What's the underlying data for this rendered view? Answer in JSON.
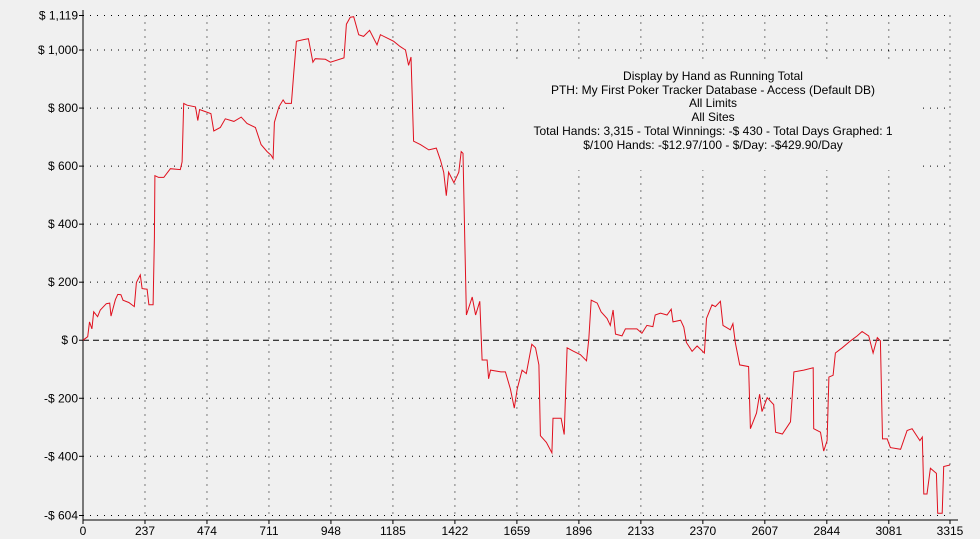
{
  "info": {
    "lines": [
      "Display by Hand as Running Total",
      "PTH: My First Poker Tracker Database - Access (Default DB)",
      "All Limits",
      "All Sites",
      "Total Hands: 3,315 - Total Winnings: -$ 430 - Total Days Graphed: 1",
      "$/100 Hands: -$12.97/100 - $/Day: -$429.90/Day"
    ]
  },
  "chart_data": {
    "type": "line",
    "title": "",
    "xlabel": "",
    "ylabel": "",
    "xlim": [
      0,
      3315
    ],
    "ylim": [
      -604,
      1119
    ],
    "grid": true,
    "line_color": "#e0101e",
    "x_ticks": [
      0,
      237,
      474,
      711,
      948,
      1185,
      1422,
      1659,
      1896,
      2133,
      2370,
      2607,
      2844,
      3081,
      3315
    ],
    "x_tick_labels": [
      "0",
      "237",
      "474",
      "711",
      "948",
      "1185",
      "1422",
      "1659",
      "1896",
      "2133",
      "2370",
      "2607",
      "2844",
      "3081",
      "3315"
    ],
    "y_ticks": [
      1119,
      1000,
      800,
      600,
      400,
      200,
      0,
      -200,
      -400,
      -604
    ],
    "y_tick_labels": [
      "$ 1,119",
      "$ 1,000",
      "$ 800",
      "$ 600",
      "$ 400",
      "$ 200",
      "$ 0",
      "-$ 200",
      "-$ 400",
      "-$ 604"
    ],
    "series": [
      {
        "x": [
          0,
          18,
          25,
          34,
          41,
          56,
          66,
          89,
          102,
          107,
          124,
          133,
          145,
          153,
          175,
          196,
          204,
          219,
          226,
          245,
          252,
          268,
          273,
          275,
          289,
          309,
          334,
          372,
          379,
          385,
          398,
          430,
          439,
          446,
          461,
          489,
          500,
          525,
          544,
          577,
          605,
          627,
          659,
          681,
          704,
          719,
          727,
          732,
          749,
          765,
          774,
          797,
          806,
          816,
          843,
          862,
          879,
          888,
          927,
          946,
          998,
          1007,
          1022,
          1035,
          1054,
          1073,
          1096,
          1124,
          1137,
          1163,
          1188,
          1213,
          1233,
          1245,
          1254,
          1264,
          1290,
          1322,
          1351,
          1367,
          1379,
          1389,
          1398,
          1418,
          1437,
          1446,
          1453,
          1460,
          1466,
          1488,
          1501,
          1517,
          1526,
          1545,
          1551,
          1558,
          1598,
          1615,
          1634,
          1649,
          1660,
          1679,
          1695,
          1716,
          1730,
          1743,
          1749,
          1772,
          1793,
          1797,
          1828,
          1840,
          1851,
          1876,
          1902,
          1925,
          1934,
          1943,
          1966,
          1981,
          2004,
          2016,
          2027,
          2036,
          2061,
          2074,
          2118,
          2137,
          2156,
          2179,
          2188,
          2208,
          2233,
          2249,
          2256,
          2285,
          2297,
          2307,
          2329,
          2348,
          2376,
          2384,
          2405,
          2418,
          2437,
          2447,
          2475,
          2485,
          2494,
          2511,
          2545,
          2552,
          2575,
          2587,
          2596,
          2616,
          2641,
          2648,
          2674,
          2705,
          2718,
          2756,
          2792,
          2794,
          2820,
          2832,
          2845,
          2852,
          2868,
          2877,
          2903,
          2935,
          2960,
          2979,
          3004,
          3021,
          3037,
          3049,
          3057,
          3075,
          3087,
          3126,
          3151,
          3170,
          3200,
          3209,
          3215,
          3227,
          3240,
          3263,
          3268,
          3285,
          3291,
          3315
        ],
        "y": [
          0,
          12,
          63,
          39,
          98,
          81,
          104,
          126,
          128,
          83,
          140,
          158,
          157,
          138,
          130,
          116,
          199,
          225,
          178,
          176,
          122,
          122,
          354,
          567,
          561,
          561,
          591,
          588,
          615,
          816,
          810,
          804,
          757,
          795,
          790,
          781,
          721,
          733,
          763,
          754,
          769,
          747,
          733,
          674,
          650,
          638,
          626,
          751,
          804,
          828,
          816,
          816,
          923,
          1030,
          1036,
          1039,
          958,
          970,
          968,
          958,
          973,
          1089,
          1113,
          1115,
          1053,
          1047,
          1068,
          1018,
          1053,
          1041,
          1030,
          1012,
          1000,
          947,
          976,
          686,
          674,
          656,
          662,
          620,
          579,
          498,
          579,
          543,
          579,
          650,
          644,
          342,
          87,
          149,
          87,
          134,
          -68,
          -68,
          -133,
          -103,
          -109,
          -109,
          -168,
          -234,
          -168,
          -103,
          -115,
          -14,
          -26,
          -85,
          -329,
          -352,
          -388,
          -269,
          -269,
          -325,
          -26,
          -38,
          -50,
          -71,
          4,
          138,
          128,
          98,
          75,
          51,
          104,
          21,
          15,
          39,
          39,
          24,
          51,
          47,
          87,
          93,
          87,
          107,
          63,
          69,
          45,
          -8,
          -38,
          -20,
          -44,
          75,
          122,
          116,
          134,
          51,
          36,
          57,
          -8,
          -85,
          -91,
          -305,
          -251,
          -186,
          -246,
          -198,
          -222,
          -317,
          -323,
          -281,
          -109,
          -103,
          -95,
          -305,
          -317,
          -382,
          -346,
          -127,
          -121,
          -44,
          -26,
          -2,
          15,
          30,
          15,
          -44,
          9,
          -2,
          -340,
          -340,
          -370,
          -376,
          -311,
          -305,
          -346,
          -334,
          -530,
          -530,
          -441,
          -459,
          -596,
          -596,
          -435,
          -430
        ]
      }
    ]
  }
}
